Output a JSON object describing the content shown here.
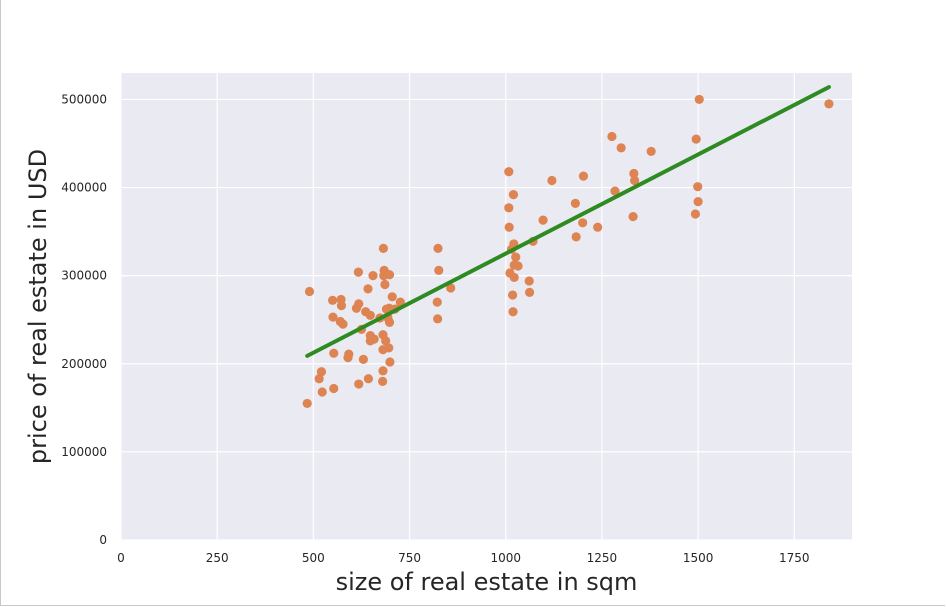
{
  "chart_data": {
    "type": "scatter",
    "title": "",
    "xlabel": "size of real estate in sqm",
    "ylabel": "price of real estate in USD",
    "xlim": [
      0,
      1900
    ],
    "ylim": [
      0,
      530000
    ],
    "x_ticks": [
      0,
      250,
      500,
      750,
      1000,
      1250,
      1500,
      1750
    ],
    "y_ticks": [
      0,
      100000,
      200000,
      300000,
      400000,
      500000
    ],
    "grid": true,
    "colors": {
      "background": "#eaeaf2",
      "grid": "#ffffff",
      "points": "#dd8452",
      "line": "#2e8b22"
    },
    "series": [
      {
        "kind": "scatter",
        "points": [
          [
            484,
            155000
          ],
          [
            490,
            282000
          ],
          [
            515,
            183000
          ],
          [
            521,
            191000
          ],
          [
            523,
            168000
          ],
          [
            550,
            272000
          ],
          [
            551,
            253000
          ],
          [
            553,
            172000
          ],
          [
            553,
            212000
          ],
          [
            570,
            248000
          ],
          [
            572,
            273000
          ],
          [
            573,
            266000
          ],
          [
            577,
            245000
          ],
          [
            590,
            207000
          ],
          [
            592,
            211000
          ],
          [
            612,
            263000
          ],
          [
            617,
            304000
          ],
          [
            618,
            268000
          ],
          [
            618,
            177000
          ],
          [
            625,
            239000
          ],
          [
            630,
            205000
          ],
          [
            636,
            259000
          ],
          [
            642,
            285000
          ],
          [
            643,
            183000
          ],
          [
            648,
            255000
          ],
          [
            648,
            232000
          ],
          [
            648,
            226000
          ],
          [
            655,
            300000
          ],
          [
            658,
            228000
          ],
          [
            673,
            252000
          ],
          [
            680,
            180000
          ],
          [
            681,
            192000
          ],
          [
            681,
            233000
          ],
          [
            681,
            216000
          ],
          [
            682,
            331000
          ],
          [
            683,
            300000
          ],
          [
            684,
            306000
          ],
          [
            686,
            290000
          ],
          [
            688,
            226000
          ],
          [
            690,
            262000
          ],
          [
            690,
            302000
          ],
          [
            694,
            252000
          ],
          [
            696,
            218000
          ],
          [
            697,
            263000
          ],
          [
            698,
            247000
          ],
          [
            698,
            301000
          ],
          [
            699,
            202000
          ],
          [
            705,
            276000
          ],
          [
            712,
            262000
          ],
          [
            726,
            270000
          ],
          [
            822,
            270000
          ],
          [
            823,
            251000
          ],
          [
            824,
            331000
          ],
          [
            826,
            306000
          ],
          [
            857,
            286000
          ],
          [
            1008,
            418000
          ],
          [
            1008,
            377000
          ],
          [
            1009,
            355000
          ],
          [
            1011,
            303000
          ],
          [
            1015,
            330000
          ],
          [
            1018,
            278000
          ],
          [
            1019,
            259000
          ],
          [
            1020,
            392000
          ],
          [
            1021,
            336000
          ],
          [
            1022,
            312000
          ],
          [
            1022,
            298000
          ],
          [
            1026,
            321000
          ],
          [
            1032,
            311000
          ],
          [
            1061,
            294000
          ],
          [
            1062,
            281000
          ],
          [
            1071,
            339000
          ],
          [
            1097,
            363000
          ],
          [
            1120,
            408000
          ],
          [
            1181,
            382000
          ],
          [
            1183,
            344000
          ],
          [
            1200,
            360000
          ],
          [
            1202,
            413000
          ],
          [
            1239,
            355000
          ],
          [
            1276,
            458000
          ],
          [
            1284,
            396000
          ],
          [
            1300,
            445000
          ],
          [
            1331,
            367000
          ],
          [
            1333,
            416000
          ],
          [
            1335,
            408000
          ],
          [
            1378,
            441000
          ],
          [
            1493,
            370000
          ],
          [
            1495,
            455000
          ],
          [
            1499,
            401000
          ],
          [
            1500,
            384000
          ],
          [
            1503,
            500000
          ],
          [
            1840,
            495000
          ]
        ]
      },
      {
        "kind": "line",
        "points": [
          [
            484,
            209000
          ],
          [
            1840,
            514000
          ]
        ]
      }
    ]
  }
}
